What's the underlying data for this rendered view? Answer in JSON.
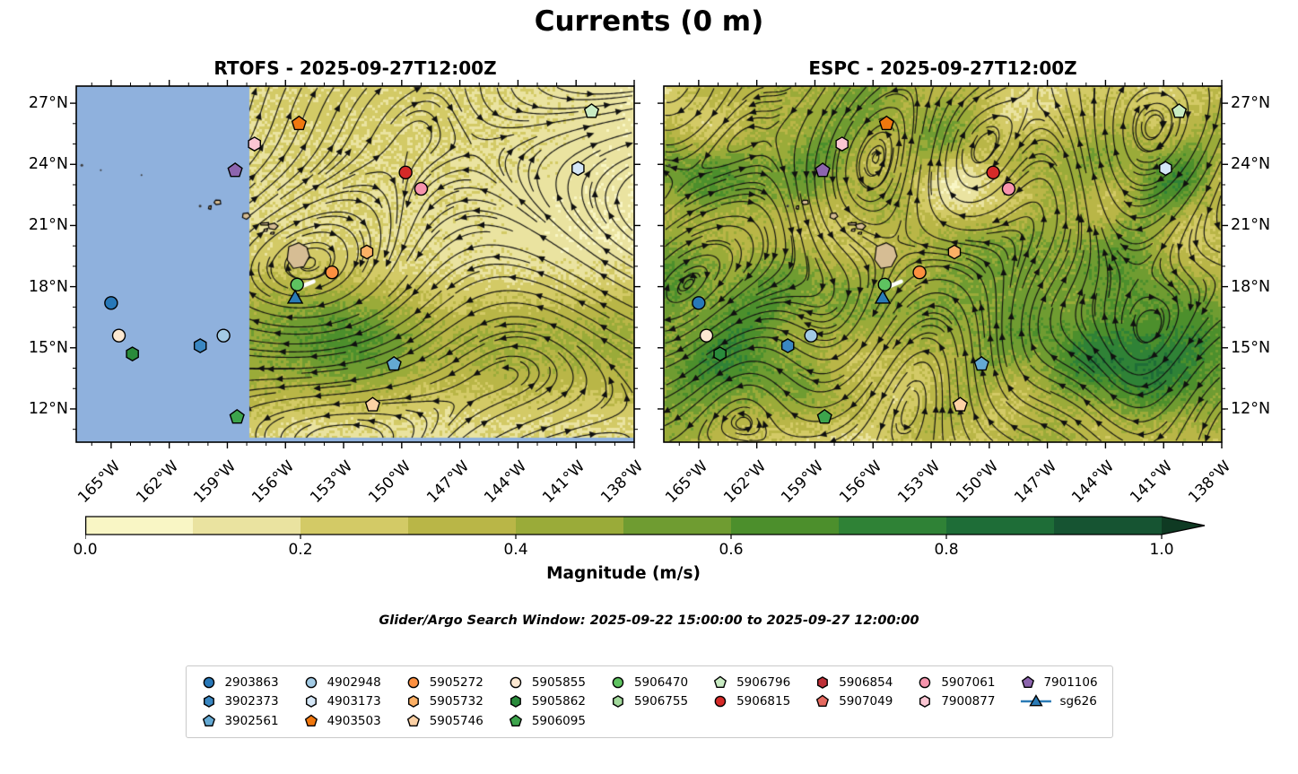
{
  "figure": {
    "title": "Currents (0 m)",
    "annotation": "Glider/Argo Search Window: 2025-09-22 15:00:00 to 2025-09-27 12:00:00"
  },
  "panels": [
    {
      "id": "rtofs",
      "title": "RTOFS - 2025-09-27T12:00Z",
      "has_no_data_mask": true
    },
    {
      "id": "espc",
      "title": "ESPC - 2025-09-27T12:00Z",
      "has_no_data_mask": false
    }
  ],
  "axes": {
    "lat_tick_labels": [
      "27°N",
      "24°N",
      "21°N",
      "18°N",
      "15°N",
      "12°N"
    ],
    "lon_tick_labels": [
      "165°W",
      "162°W",
      "159°W",
      "156°W",
      "153°W",
      "150°W",
      "147°W",
      "144°W",
      "141°W",
      "138°W"
    ]
  },
  "colorbar": {
    "label": "Magnitude (m/s)",
    "tick_labels": [
      "0.0",
      "0.2",
      "0.4",
      "0.6",
      "0.8",
      "1.0"
    ],
    "segment_colors": [
      "#f9f6c5",
      "#eae3a0",
      "#d3ca66",
      "#b9b647",
      "#9aab39",
      "#6f9c31",
      "#4c8f2c",
      "#2f8236",
      "#1e6d37",
      "#165432"
    ],
    "extend_color": "#0f3a23"
  },
  "map_style": {
    "no_data_color": "#8fb1dd",
    "land_color": "#d6bd94",
    "coast_color": "#000000",
    "streamline_color": "#101010",
    "glider_vector_color": "#ffffff"
  },
  "legend": {
    "rows_per_column": [
      3,
      3,
      3,
      3,
      2,
      2,
      2,
      2,
      2
    ]
  },
  "chart_data": {
    "type": "heatmap",
    "subtype": "ocean-current-streamplot-comparison",
    "title": "Currents (0 m)",
    "panels": [
      {
        "name": "RTOFS",
        "valid_time": "2025-09-27T12:00Z"
      },
      {
        "name": "ESPC",
        "valid_time": "2025-09-27T12:00Z"
      }
    ],
    "lon_range_deg": [
      -166.8,
      -138.0
    ],
    "lat_range_deg": [
      10.37,
      27.84
    ],
    "lon_ticks_deg_w": [
      165,
      162,
      159,
      156,
      153,
      150,
      147,
      144,
      141,
      138
    ],
    "lat_ticks_deg_n": [
      27,
      24,
      21,
      18,
      15,
      12
    ],
    "colorbar": {
      "label": "Magnitude (m/s)",
      "ticks": [
        0.0,
        0.2,
        0.4,
        0.6,
        0.8,
        1.0
      ],
      "range": [
        0,
        1
      ],
      "extend": "max"
    },
    "search_window": {
      "start": "2025-09-22 15:00:00",
      "end": "2025-09-27 12:00:00"
    },
    "floats": [
      {
        "id": "2903863",
        "marker": "circle",
        "color": "#2878b8",
        "lon": -165.0,
        "lat": 17.2
      },
      {
        "id": "3902373",
        "marker": "hexagon",
        "color": "#3a87c2",
        "lon": -160.4,
        "lat": 15.1
      },
      {
        "id": "3902561",
        "marker": "pentagon",
        "color": "#64a9d3",
        "lon": -150.4,
        "lat": 14.2
      },
      {
        "id": "4902948",
        "marker": "circle",
        "color": "#a3cbe5",
        "lon": -159.2,
        "lat": 15.6
      },
      {
        "id": "4903173",
        "marker": "hexagon",
        "color": "#d5e7f7",
        "lon": -140.9,
        "lat": 23.8
      },
      {
        "id": "4903503",
        "marker": "pentagon",
        "color": "#f0770e",
        "lon": -155.3,
        "lat": 26.0
      },
      {
        "id": "5905272",
        "marker": "circle",
        "color": "#fd9040",
        "lon": -153.6,
        "lat": 18.7
      },
      {
        "id": "5905732",
        "marker": "hexagon",
        "color": "#fdb065",
        "lon": -151.8,
        "lat": 19.7
      },
      {
        "id": "5905746",
        "marker": "pentagon",
        "color": "#fcd1a5",
        "lon": -151.5,
        "lat": 12.2
      },
      {
        "id": "5905855",
        "marker": "circle",
        "color": "#fde9d2",
        "lon": -164.6,
        "lat": 15.6
      },
      {
        "id": "5905862",
        "marker": "hexagon",
        "color": "#2a8b3b",
        "lon": -163.9,
        "lat": 14.7
      },
      {
        "id": "5906095",
        "marker": "pentagon",
        "color": "#3da44c",
        "lon": -158.5,
        "lat": 11.6
      },
      {
        "id": "5906470",
        "marker": "circle",
        "color": "#5ec360",
        "lon": -155.4,
        "lat": 18.1
      },
      {
        "id": "5906755",
        "marker": "hexagon",
        "color": "#a2d99c",
        "lon": null,
        "lat": null
      },
      {
        "id": "5906796",
        "marker": "pentagon",
        "color": "#c9ecc3",
        "lon": -140.2,
        "lat": 26.6
      },
      {
        "id": "5906815",
        "marker": "circle",
        "color": "#d62a28",
        "lon": -149.8,
        "lat": 23.6
      },
      {
        "id": "5906854",
        "marker": "hexagon",
        "color": "#bf3038",
        "lon": null,
        "lat": null
      },
      {
        "id": "5907049",
        "marker": "pentagon",
        "color": "#e66a60",
        "lon": null,
        "lat": null
      },
      {
        "id": "5907061",
        "marker": "circle",
        "color": "#f694ad",
        "lon": -149.0,
        "lat": 22.8
      },
      {
        "id": "7900877",
        "marker": "hexagon",
        "color": "#fbc6d3",
        "lon": -157.6,
        "lat": 25.0
      },
      {
        "id": "7901106",
        "marker": "pentagon",
        "color": "#8d65ae",
        "lon": -158.6,
        "lat": 23.7
      },
      {
        "id": "sg626",
        "marker": "triangle-line",
        "color": "#2a7ab5",
        "lon": -155.5,
        "lat": 17.4
      }
    ],
    "glider_vector": {
      "from": [
        -155.2,
        18.0
      ],
      "to": [
        -154.55,
        18.25
      ]
    }
  }
}
